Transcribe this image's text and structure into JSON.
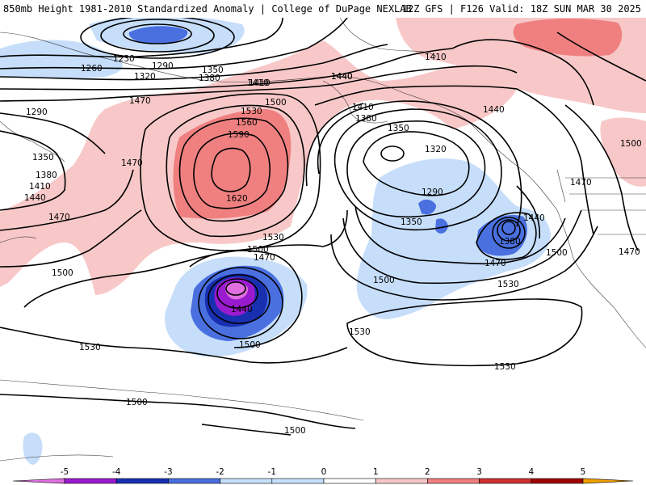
{
  "header": {
    "title_left": "850mb Height 1981-2010 Standardized Anomaly | College of DuPage NEXLAB",
    "title_right": "12Z GFS | F126 Valid: 18Z SUN MAR 30 2025"
  },
  "colors": {
    "neg5": "#e070e0",
    "neg4": "#9a1ad0",
    "neg3": "#1830b0",
    "neg2": "#4a70e0",
    "neg1": "#c6defa",
    "zero": "#ffffff",
    "pos1": "#f8c8c8",
    "pos2": "#f08080",
    "pos3": "#d03030",
    "pos4": "#a00000",
    "pos5": "#f0a000"
  },
  "contour_labels": [
    "1230",
    "1260",
    "1290",
    "1320",
    "1350",
    "1380",
    "1410",
    "1440",
    "1290",
    "1350",
    "1380",
    "1410",
    "1440",
    "1470",
    "1500",
    "1530",
    "1560",
    "1590",
    "1620",
    "1470",
    "1470",
    "1500",
    "1530",
    "1500",
    "1470",
    "1440",
    "1500",
    "1530",
    "1500",
    "1500",
    "1410",
    "1440",
    "1410",
    "1380",
    "1350",
    "1320",
    "1290",
    "1350",
    "1380",
    "1440",
    "1470",
    "1500",
    "1530",
    "1530",
    "1500",
    "1470",
    "1410",
    "1500",
    "1530",
    "1470",
    "1440"
  ],
  "colorbar": {
    "ticks": [
      "-5",
      "-4",
      "-3",
      "-2",
      "-1",
      "0",
      "1",
      "2",
      "3",
      "4",
      "5"
    ]
  }
}
